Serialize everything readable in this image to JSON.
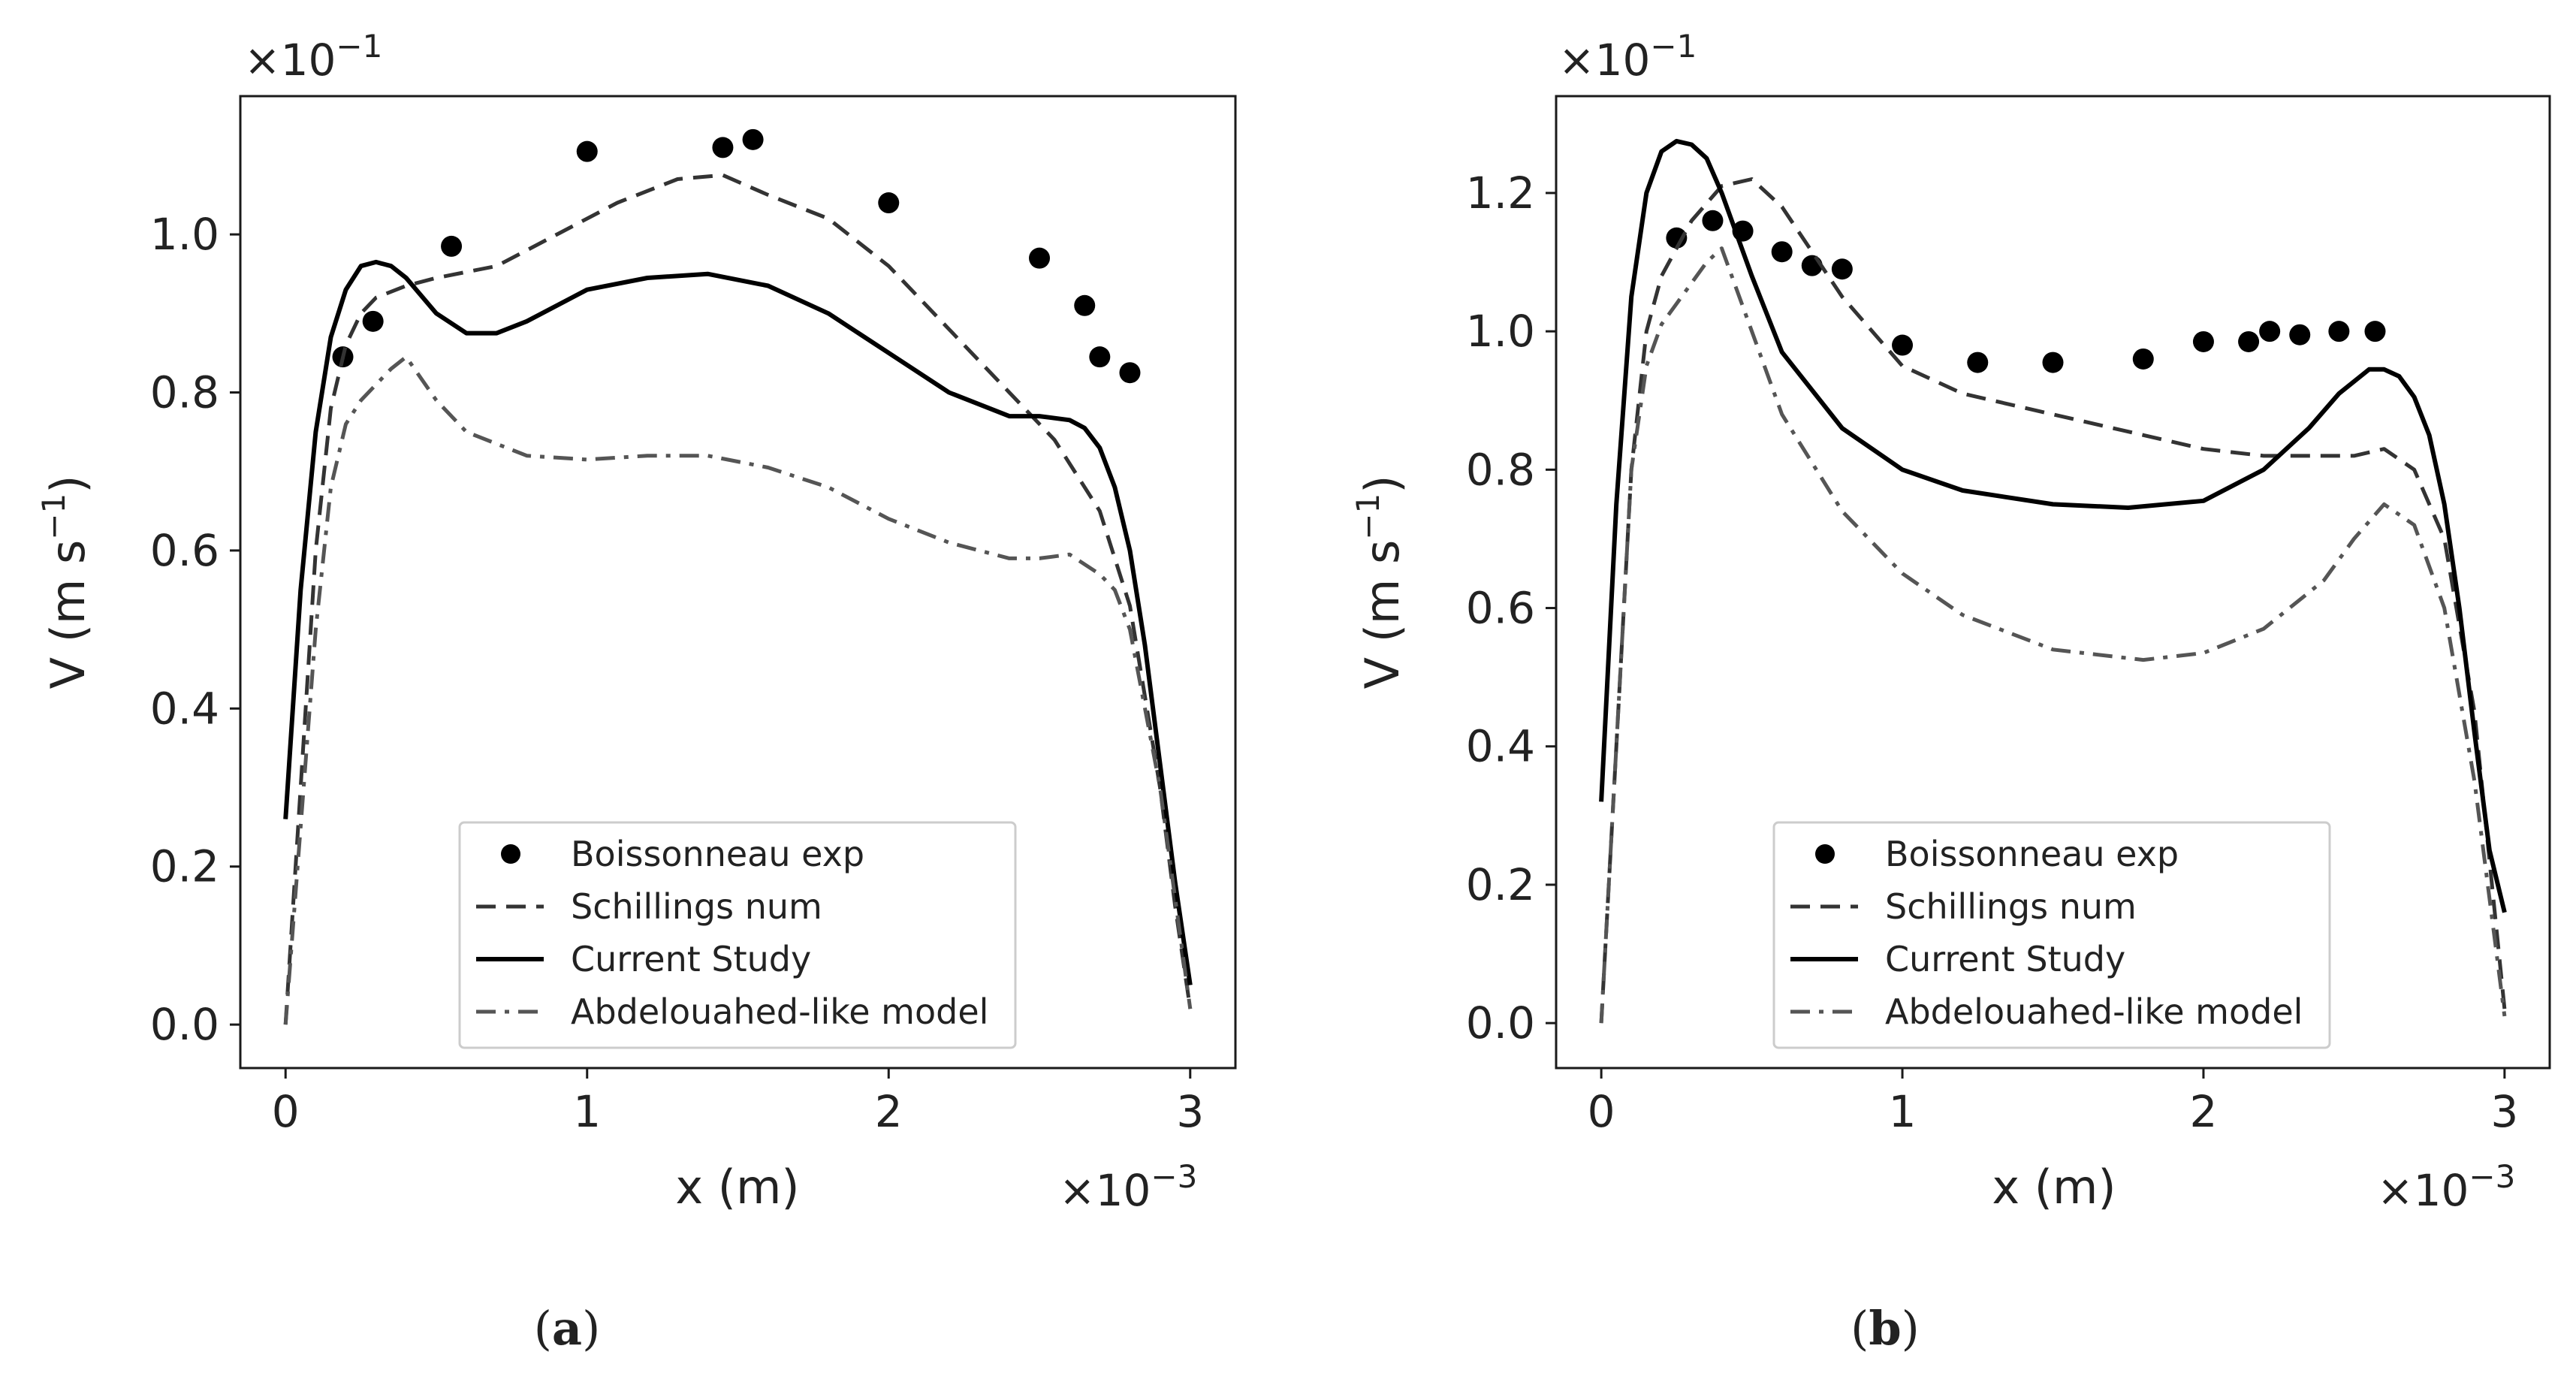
{
  "chart_data": [
    {
      "type": "line",
      "panel_label": "a",
      "caption": {
        "open": "(",
        "letter": "a",
        "close": ")"
      },
      "xlabel": "x (m)",
      "ylabel": "V (m s",
      "ylabel_exp": "−1",
      "ylabel_close": ")",
      "x_multiplier": {
        "base": "×10",
        "exp": "−3"
      },
      "y_multiplier": {
        "base": "×10",
        "exp": "−1"
      },
      "xlim": [
        -0.15,
        3.15
      ],
      "ylim": [
        -0.055,
        1.175
      ],
      "xticks": [
        0,
        1,
        2,
        3
      ],
      "xtick_labels": [
        "0",
        "1",
        "2",
        "3"
      ],
      "yticks": [
        0.0,
        0.2,
        0.4,
        0.6,
        0.8,
        1.0
      ],
      "ytick_labels": [
        "0.0",
        "0.2",
        "0.4",
        "0.6",
        "0.8",
        "1.0"
      ],
      "legend_position": "lower-center",
      "series": [
        {
          "name": "Boissonneau exp",
          "style": "markers",
          "color": "#000000",
          "x": [
            0.19,
            0.29,
            0.55,
            1.0,
            1.45,
            1.55,
            2.0,
            2.5,
            2.65,
            2.7,
            2.8
          ],
          "y": [
            0.845,
            0.89,
            0.985,
            1.105,
            1.11,
            1.12,
            1.04,
            0.97,
            0.91,
            0.845,
            0.825
          ]
        },
        {
          "name": "Schillings num",
          "style": "dashed",
          "color": "#333333",
          "x": [
            0.0,
            0.05,
            0.1,
            0.15,
            0.2,
            0.25,
            0.3,
            0.4,
            0.5,
            0.7,
            0.9,
            1.1,
            1.3,
            1.45,
            1.6,
            1.8,
            2.0,
            2.2,
            2.4,
            2.55,
            2.7,
            2.8,
            2.9,
            2.95,
            3.0
          ],
          "y": [
            0.0,
            0.3,
            0.6,
            0.78,
            0.86,
            0.9,
            0.92,
            0.935,
            0.945,
            0.96,
            1.0,
            1.04,
            1.07,
            1.075,
            1.05,
            1.02,
            0.96,
            0.88,
            0.8,
            0.74,
            0.65,
            0.53,
            0.3,
            0.15,
            0.02
          ]
        },
        {
          "name": "Current Study",
          "style": "solid",
          "color": "#000000",
          "x": [
            0.0,
            0.05,
            0.1,
            0.15,
            0.2,
            0.25,
            0.3,
            0.35,
            0.4,
            0.5,
            0.6,
            0.7,
            0.8,
            1.0,
            1.2,
            1.4,
            1.6,
            1.8,
            2.0,
            2.2,
            2.4,
            2.5,
            2.6,
            2.65,
            2.7,
            2.75,
            2.8,
            2.85,
            2.9,
            2.95,
            3.0
          ],
          "y": [
            0.26,
            0.55,
            0.75,
            0.87,
            0.93,
            0.96,
            0.965,
            0.96,
            0.945,
            0.9,
            0.875,
            0.875,
            0.89,
            0.93,
            0.945,
            0.95,
            0.935,
            0.9,
            0.85,
            0.8,
            0.77,
            0.77,
            0.765,
            0.755,
            0.73,
            0.68,
            0.6,
            0.48,
            0.33,
            0.18,
            0.05
          ]
        },
        {
          "name": "Abdelouahed-like model",
          "style": "dashdot",
          "color": "#555555",
          "x": [
            0.0,
            0.05,
            0.1,
            0.15,
            0.2,
            0.25,
            0.3,
            0.35,
            0.4,
            0.5,
            0.6,
            0.8,
            1.0,
            1.2,
            1.4,
            1.6,
            1.8,
            2.0,
            2.2,
            2.4,
            2.5,
            2.6,
            2.7,
            2.75,
            2.8,
            2.9,
            3.0
          ],
          "y": [
            0.0,
            0.25,
            0.5,
            0.68,
            0.76,
            0.79,
            0.81,
            0.83,
            0.845,
            0.79,
            0.75,
            0.72,
            0.715,
            0.72,
            0.72,
            0.705,
            0.68,
            0.64,
            0.61,
            0.59,
            0.59,
            0.595,
            0.57,
            0.55,
            0.5,
            0.3,
            0.02
          ]
        }
      ]
    },
    {
      "type": "line",
      "panel_label": "b",
      "caption": {
        "open": "(",
        "letter": "b",
        "close": ")"
      },
      "xlabel": "x (m)",
      "ylabel": "V (m s",
      "ylabel_exp": "−1",
      "ylabel_close": ")",
      "x_multiplier": {
        "base": "×10",
        "exp": "−3"
      },
      "y_multiplier": {
        "base": "×10",
        "exp": "−1"
      },
      "xlim": [
        -0.15,
        3.15
      ],
      "ylim": [
        -0.065,
        1.34
      ],
      "xticks": [
        0,
        1,
        2,
        3
      ],
      "xtick_labels": [
        "0",
        "1",
        "2",
        "3"
      ],
      "yticks": [
        0.0,
        0.2,
        0.4,
        0.6,
        0.8,
        1.0,
        1.2
      ],
      "ytick_labels": [
        "0.0",
        "0.2",
        "0.4",
        "0.6",
        "0.8",
        "1.0",
        "1.2"
      ],
      "legend_position": "lower-center",
      "series": [
        {
          "name": "Boissonneau exp",
          "style": "markers",
          "color": "#000000",
          "x": [
            0.25,
            0.37,
            0.47,
            0.6,
            0.7,
            0.8,
            1.0,
            1.25,
            1.5,
            1.8,
            2.0,
            2.15,
            2.22,
            2.32,
            2.45,
            2.57
          ],
          "y": [
            1.135,
            1.16,
            1.145,
            1.115,
            1.095,
            1.09,
            0.98,
            0.955,
            0.955,
            0.96,
            0.985,
            0.985,
            1.0,
            0.995,
            1.0,
            1.0
          ]
        },
        {
          "name": "Schillings num",
          "style": "dashed",
          "color": "#333333",
          "x": [
            0.0,
            0.05,
            0.1,
            0.15,
            0.2,
            0.25,
            0.3,
            0.4,
            0.5,
            0.6,
            0.8,
            1.0,
            1.2,
            1.5,
            1.8,
            2.0,
            2.2,
            2.4,
            2.5,
            2.6,
            2.7,
            2.8,
            2.9,
            3.0
          ],
          "y": [
            0.0,
            0.4,
            0.8,
            1.0,
            1.08,
            1.12,
            1.16,
            1.21,
            1.22,
            1.18,
            1.05,
            0.95,
            0.91,
            0.88,
            0.85,
            0.83,
            0.82,
            0.82,
            0.82,
            0.83,
            0.8,
            0.7,
            0.45,
            0.02
          ]
        },
        {
          "name": "Current Study",
          "style": "solid",
          "color": "#000000",
          "x": [
            0.0,
            0.05,
            0.1,
            0.15,
            0.2,
            0.25,
            0.3,
            0.35,
            0.4,
            0.5,
            0.6,
            0.8,
            1.0,
            1.2,
            1.5,
            1.75,
            2.0,
            2.2,
            2.35,
            2.45,
            2.55,
            2.6,
            2.65,
            2.7,
            2.75,
            2.8,
            2.85,
            2.9,
            2.95,
            3.0
          ],
          "y": [
            0.32,
            0.75,
            1.05,
            1.2,
            1.26,
            1.275,
            1.27,
            1.25,
            1.2,
            1.08,
            0.97,
            0.86,
            0.8,
            0.77,
            0.75,
            0.745,
            0.755,
            0.8,
            0.86,
            0.91,
            0.945,
            0.945,
            0.935,
            0.905,
            0.85,
            0.75,
            0.6,
            0.42,
            0.25,
            0.16
          ]
        },
        {
          "name": "Abdelouahed-like model",
          "style": "dashdot",
          "color": "#555555",
          "x": [
            0.0,
            0.05,
            0.1,
            0.15,
            0.2,
            0.25,
            0.3,
            0.35,
            0.4,
            0.5,
            0.6,
            0.8,
            1.0,
            1.2,
            1.5,
            1.8,
            2.0,
            2.2,
            2.4,
            2.5,
            2.6,
            2.7,
            2.8,
            2.9,
            3.0
          ],
          "y": [
            0.0,
            0.4,
            0.8,
            0.95,
            1.01,
            1.04,
            1.07,
            1.1,
            1.12,
            1.0,
            0.88,
            0.74,
            0.65,
            0.59,
            0.54,
            0.525,
            0.535,
            0.57,
            0.64,
            0.7,
            0.75,
            0.72,
            0.6,
            0.35,
            0.01
          ]
        }
      ]
    }
  ]
}
